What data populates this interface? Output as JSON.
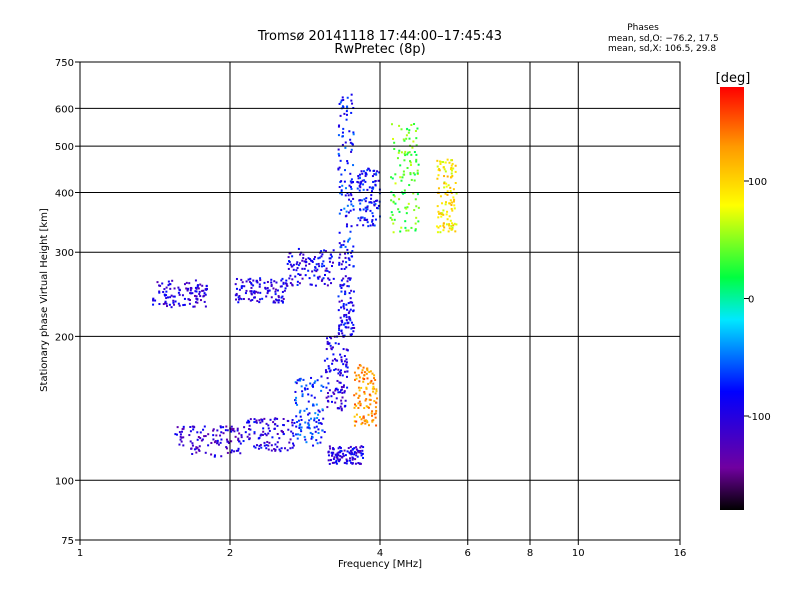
{
  "chart_data": {
    "type": "scatter",
    "title": "Tromsø 20141118 17:44:00–17:45:43",
    "subtitle": "RwPretec (8p)",
    "xlabel": "Frequency [MHz]",
    "ylabel": "Stationary phase Virtual Height [km]",
    "x_scale": "log",
    "y_scale": "log",
    "xlim": [
      1,
      16
    ],
    "ylim": [
      75,
      750
    ],
    "x_ticks": [
      1,
      2,
      4,
      6,
      8,
      10,
      16
    ],
    "y_ticks": [
      75,
      100,
      200,
      300,
      400,
      500,
      600,
      750
    ],
    "grid": true,
    "stats": {
      "heading": "Phases",
      "o_line": "mean, sd,O: −76.2, 17.5",
      "x_line": "mean, sd,X: 106.5, 29.8"
    },
    "colorbar": {
      "label": "[deg]",
      "range": [
        -180,
        180
      ],
      "ticks": [
        100,
        0,
        -100
      ],
      "colormap": "rainbow (black→purple→blue→cyan→green→yellow→orange→red)"
    },
    "clusters": [
      {
        "x": [
          1.4,
          1.8
        ],
        "y": [
          230,
          262
        ],
        "phase": -105
      },
      {
        "x": [
          2.05,
          2.6
        ],
        "y": [
          235,
          265
        ],
        "phase": -100
      },
      {
        "x": [
          2.6,
          3.25
        ],
        "y": [
          255,
          305
        ],
        "phase": -95
      },
      {
        "x": [
          3.3,
          3.55
        ],
        "y": [
          300,
          650
        ],
        "phase": -75
      },
      {
        "x": [
          3.6,
          4.0
        ],
        "y": [
          340,
          450
        ],
        "phase": -80
      },
      {
        "x": [
          4.2,
          4.8
        ],
        "y": [
          330,
          560
        ],
        "phase": 40
      },
      {
        "x": [
          5.2,
          5.7
        ],
        "y": [
          330,
          470
        ],
        "phase": 90
      },
      {
        "x": [
          1.55,
          2.1
        ],
        "y": [
          112,
          130
        ],
        "phase": -110
      },
      {
        "x": [
          2.1,
          2.7
        ],
        "y": [
          115,
          135
        ],
        "phase": -100
      },
      {
        "x": [
          2.7,
          3.1
        ],
        "y": [
          118,
          165
        ],
        "phase": -70
      },
      {
        "x": [
          3.1,
          3.45
        ],
        "y": [
          140,
          200
        ],
        "phase": -100
      },
      {
        "x": [
          3.3,
          3.55
        ],
        "y": [
          200,
          300
        ],
        "phase": -90
      },
      {
        "x": [
          3.15,
          3.7
        ],
        "y": [
          108,
          118
        ],
        "phase": -100
      },
      {
        "x": [
          3.55,
          3.95
        ],
        "y": [
          130,
          175
        ],
        "phase": 130
      }
    ]
  }
}
